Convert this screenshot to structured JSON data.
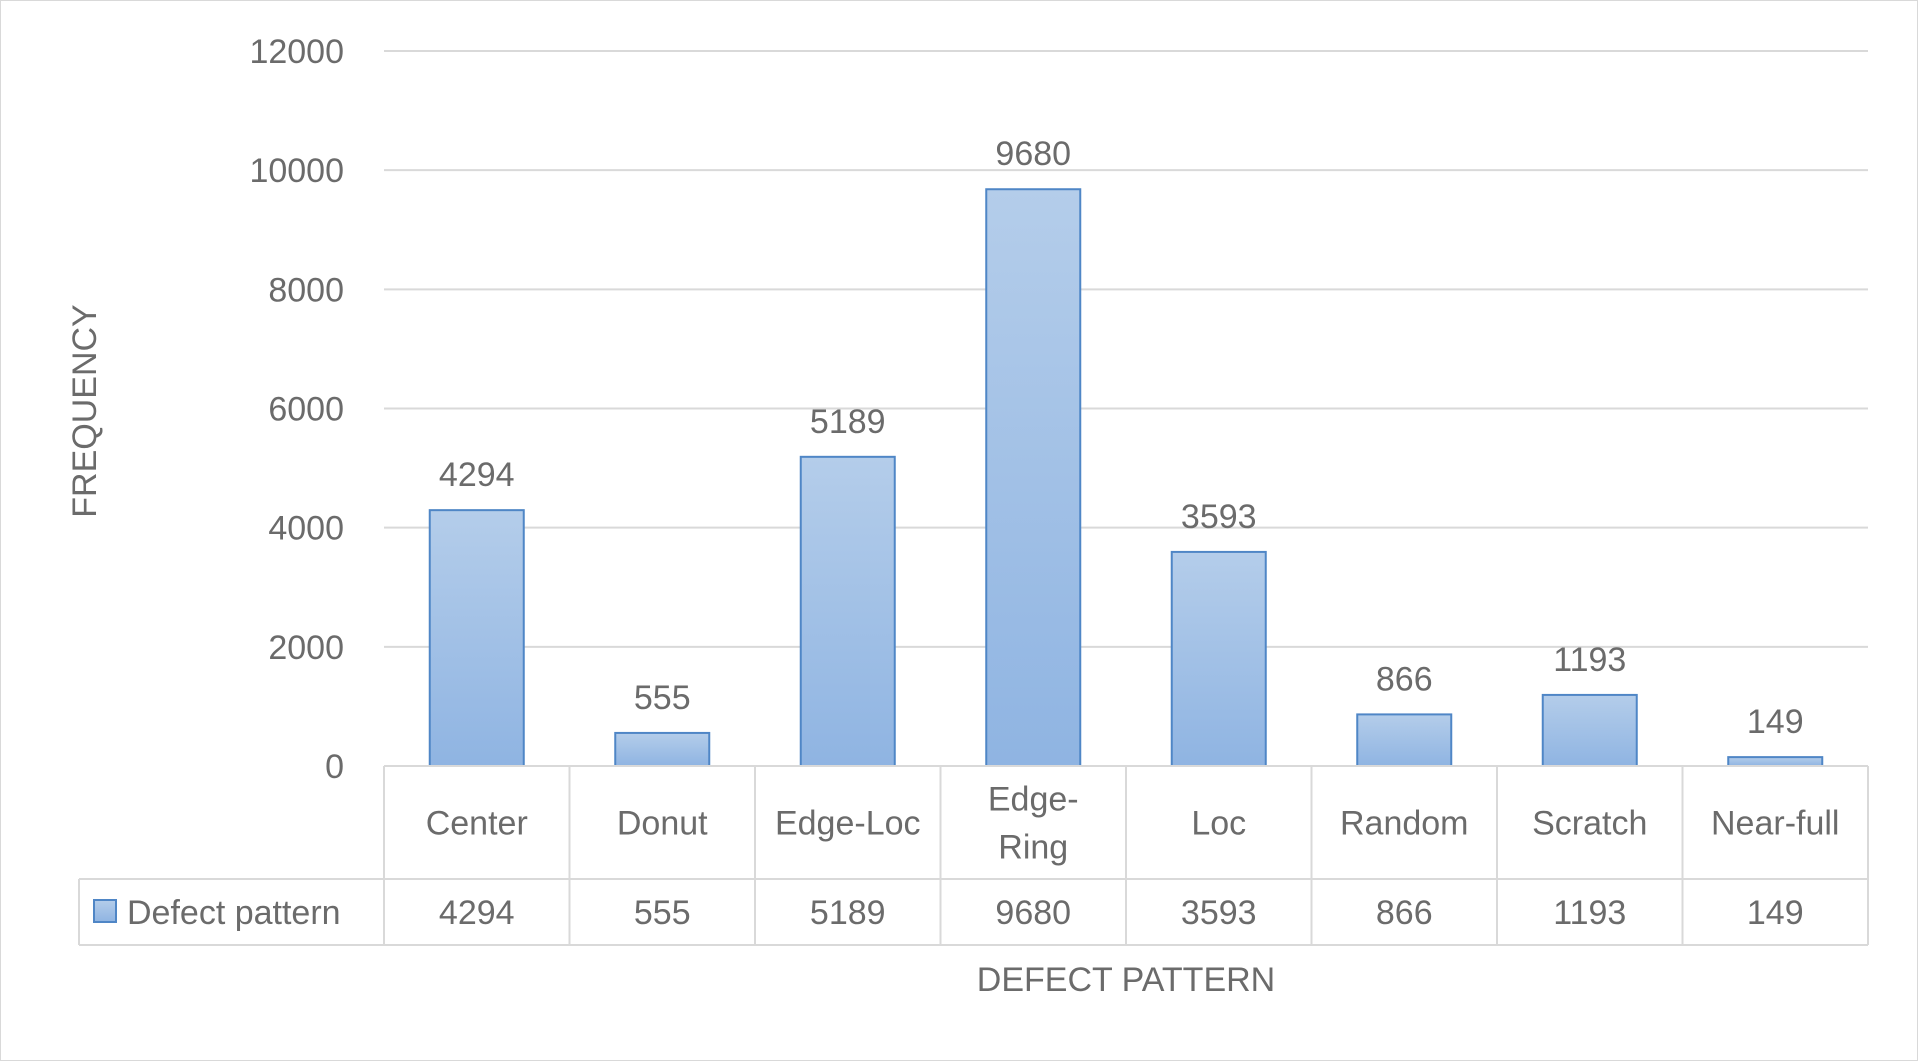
{
  "chart_data": {
    "type": "bar",
    "title": "",
    "xlabel": "DEFECT PATTERN",
    "ylabel": "FREQUENCY",
    "categories": [
      "Center",
      "Donut",
      "Edge-Loc",
      "Edge-Ring",
      "Loc",
      "Random",
      "Scratch",
      "Near-full"
    ],
    "category_lines": [
      [
        "Center"
      ],
      [
        "Donut"
      ],
      [
        "Edge-Loc"
      ],
      [
        "Edge-",
        "Ring"
      ],
      [
        "Loc"
      ],
      [
        "Random"
      ],
      [
        "Scratch"
      ],
      [
        "Near-full"
      ]
    ],
    "series": [
      {
        "name": "Defect pattern",
        "values": [
          4294,
          555,
          5189,
          9680,
          3593,
          866,
          1193,
          149
        ]
      }
    ],
    "ylim": [
      0,
      12000
    ],
    "y_ticks": [
      0,
      2000,
      4000,
      6000,
      8000,
      10000,
      12000
    ],
    "grid": true,
    "data_labels": true,
    "data_table": true,
    "legend": "data-table-left",
    "colors": {
      "bar_fill_top": "#b4cdea",
      "bar_fill_bottom": "#8fb4e2",
      "bar_stroke": "#4f86c6",
      "grid": "#d9d9d9",
      "text": "#6b6b6b"
    }
  }
}
